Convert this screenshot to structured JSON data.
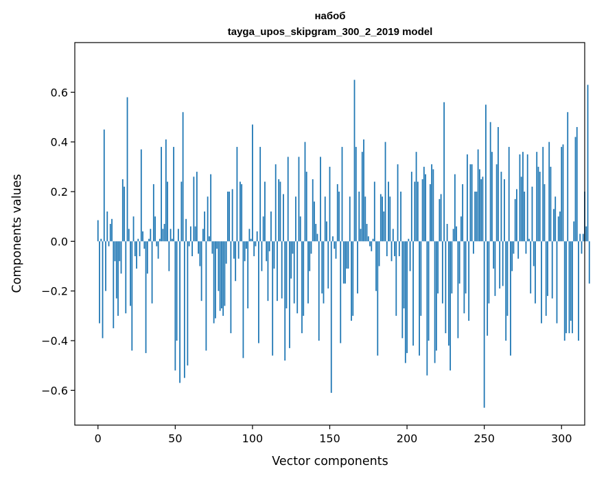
{
  "chart_data": {
    "type": "bar",
    "title": "набоб",
    "subtitle": "tayga_upos_skipgram_300_2_2019 model",
    "xlabel": "Vector components",
    "ylabel": "Components values",
    "xlim": [
      -15,
      315
    ],
    "ylim": [
      -0.74,
      0.8
    ],
    "xticks": [
      0,
      50,
      100,
      150,
      200,
      250,
      300
    ],
    "yticks": [
      -0.6,
      -0.4,
      -0.2,
      0.0,
      0.2,
      0.4,
      0.6
    ],
    "ytick_labels": [
      "−0.6",
      "−0.4",
      "−0.2",
      "0.0",
      "0.2",
      "0.4",
      "0.6"
    ],
    "grid": false,
    "bar_color": "#1f77b4",
    "values": [
      0.085,
      -0.33,
      0.01,
      -0.39,
      0.45,
      -0.2,
      0.12,
      -0.02,
      0.07,
      0.09,
      -0.35,
      -0.08,
      -0.23,
      -0.3,
      -0.08,
      -0.13,
      0.25,
      0.22,
      -0.29,
      0.58,
      0.05,
      -0.26,
      -0.44,
      0.1,
      -0.06,
      -0.11,
      0.01,
      -0.06,
      0.37,
      0.04,
      -0.03,
      -0.45,
      -0.13,
      0.01,
      0.05,
      -0.25,
      0.23,
      0.1,
      -0.02,
      -0.07,
      0.01,
      0.38,
      0.05,
      0.07,
      0.41,
      0.24,
      -0.12,
      0.05,
      0.01,
      0.38,
      -0.52,
      -0.4,
      0.05,
      -0.57,
      0.24,
      0.52,
      -0.55,
      0.09,
      -0.5,
      -0.02,
      0.06,
      -0.06,
      0.26,
      0.06,
      0.28,
      -0.05,
      -0.1,
      -0.24,
      0.05,
      0.12,
      -0.44,
      0.18,
      0.02,
      0.27,
      -0.05,
      -0.33,
      -0.31,
      -0.03,
      -0.2,
      -0.28,
      -0.27,
      -0.3,
      -0.26,
      -0.09,
      0.2,
      0.2,
      -0.37,
      0.21,
      -0.07,
      -0.16,
      0.38,
      -0.07,
      0.24,
      0.23,
      -0.47,
      -0.08,
      -0.03,
      -0.27,
      0.05,
      0.01,
      0.47,
      -0.06,
      -0.02,
      0.04,
      -0.41,
      0.38,
      -0.12,
      0.1,
      0.24,
      -0.08,
      -0.24,
      -0.04,
      0.12,
      -0.46,
      -0.11,
      0.31,
      -0.24,
      0.25,
      0.24,
      -0.23,
      0.19,
      -0.48,
      -0.27,
      0.34,
      -0.43,
      -0.15,
      -0.05,
      -0.25,
      0.18,
      -0.29,
      0.34,
      0.1,
      -0.37,
      -0.3,
      0.4,
      0.28,
      -0.25,
      -0.12,
      -0.05,
      0.25,
      0.16,
      0.07,
      0.03,
      -0.4,
      0.34,
      -0.21,
      -0.25,
      0.18,
      0.08,
      -0.19,
      0.3,
      -0.61,
      0.02,
      -0.03,
      -0.07,
      0.23,
      0.2,
      -0.41,
      0.38,
      -0.17,
      -0.17,
      -0.11,
      -0.11,
      0.18,
      -0.32,
      -0.3,
      0.65,
      0.38,
      -0.21,
      0.2,
      0.05,
      0.36,
      0.41,
      0.18,
      0.07,
      0.02,
      -0.02,
      -0.04,
      0.01,
      0.24,
      -0.2,
      -0.46,
      -0.1,
      0.19,
      0.18,
      0.12,
      0.4,
      -0.06,
      0.24,
      0.18,
      -0.08,
      0.05,
      -0.06,
      -0.3,
      0.31,
      -0.06,
      0.2,
      -0.39,
      -0.27,
      -0.49,
      -0.45,
      0.01,
      -0.12,
      0.28,
      -0.42,
      0.24,
      0.36,
      0.24,
      -0.46,
      -0.3,
      0.25,
      0.3,
      0.27,
      -0.54,
      -0.4,
      0.23,
      0.31,
      0.29,
      -0.49,
      -0.44,
      -0.21,
      0.17,
      0.19,
      -0.25,
      0.56,
      -0.37,
      0.07,
      -0.42,
      -0.52,
      -0.21,
      0.05,
      0.27,
      0.06,
      -0.39,
      -0.17,
      0.1,
      0.23,
      -0.29,
      -0.21,
      0.35,
      -0.32,
      0.31,
      0.31,
      -0.05,
      0.2,
      0.2,
      0.37,
      0.29,
      0.25,
      0.26,
      -0.67,
      0.55,
      -0.38,
      -0.25,
      0.48,
      0.36,
      -0.11,
      -0.22,
      0.31,
      0.46,
      -0.19,
      0.28,
      -0.18,
      0.25,
      -0.4,
      -0.3,
      0.38,
      -0.46,
      -0.12,
      -0.05,
      0.17,
      0.21,
      -0.07,
      0.35,
      0.26,
      0.36,
      0.2,
      -0.05,
      0.35,
      0.01,
      -0.21,
      0.22,
      -0.1,
      -0.25,
      0.36,
      0.3,
      0.28,
      -0.33,
      0.38,
      0.23,
      -0.3,
      -0.22,
      0.4,
      0.3,
      -0.23,
      0.13,
      0.18,
      -0.33,
      0.1,
      0.12,
      0.38,
      0.39,
      -0.4,
      -0.37,
      0.52,
      -0.37,
      -0.32,
      -0.37,
      0.08,
      0.42,
      0.46,
      -0.4,
      0.03,
      -0.05,
      0.03,
      0.2,
      0.06,
      0.63,
      -0.17
    ]
  }
}
